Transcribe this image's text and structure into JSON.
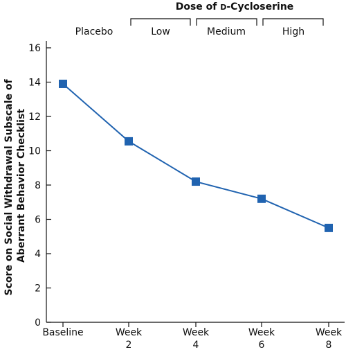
{
  "chart_data": {
    "type": "line",
    "x_categories": [
      {
        "line1": "Baseline",
        "line2": ""
      },
      {
        "line1": "Week",
        "line2": "2"
      },
      {
        "line1": "Week",
        "line2": "4"
      },
      {
        "line1": "Week",
        "line2": "6"
      },
      {
        "line1": "Week",
        "line2": "8"
      }
    ],
    "series": [
      {
        "values": [
          13.9,
          10.55,
          8.2,
          7.2,
          5.5
        ],
        "color": "#2063B0",
        "marker": "square"
      }
    ],
    "ylabel_line1": "Score on Social Withdrawal Subscale of",
    "ylabel_line2": "Aberrant Behavior Checklist",
    "ylim": [
      0,
      16
    ],
    "yticks": [
      0,
      2,
      4,
      6,
      8,
      10,
      12,
      14,
      16
    ],
    "grid": false,
    "dose_title": {
      "prefix": "Dose of ",
      "small_caps": "D",
      "suffix": "-Cycloserine"
    },
    "phases": [
      "Placebo",
      "Low",
      "Medium",
      "High"
    ]
  }
}
